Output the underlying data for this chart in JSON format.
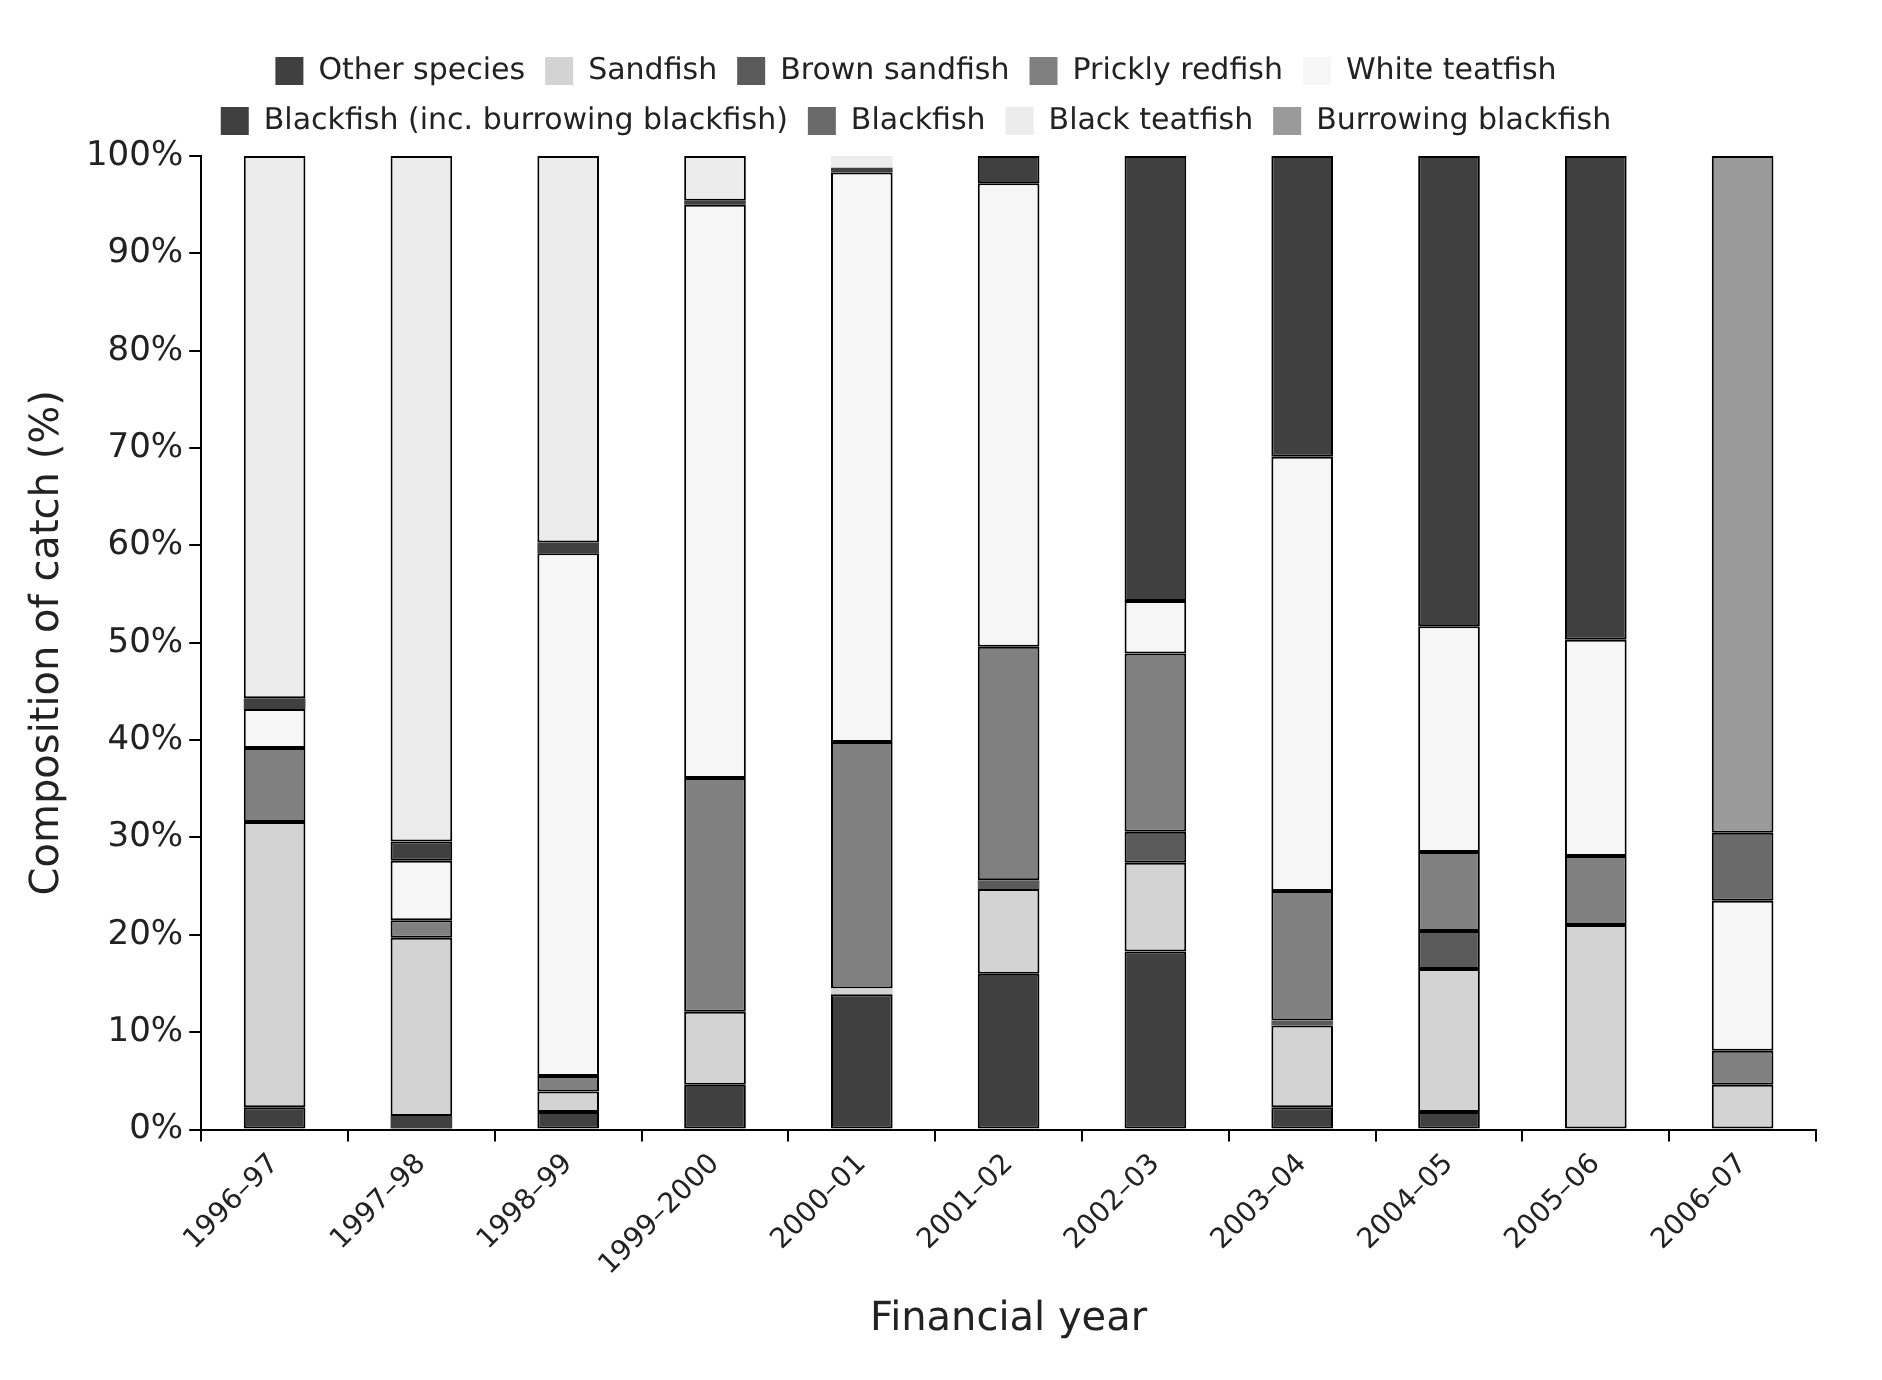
{
  "chart_data": {
    "type": "bar",
    "stacked": true,
    "xlabel": "Financial year",
    "ylabel": "Composition of catch (%)",
    "legend": "top",
    "grid": false,
    "categories": [
      "1996–97",
      "1997–98",
      "1998–99",
      "1999–2000",
      "2000–01",
      "2001–02",
      "2002–03",
      "2003–04",
      "2004–05",
      "2005–06",
      "2006–07"
    ],
    "ylim": [
      0,
      100
    ],
    "yticks": [
      {
        "value": 0,
        "label": "0%"
      },
      {
        "value": 10,
        "label": "10%"
      },
      {
        "value": 20,
        "label": "20%"
      },
      {
        "value": 30,
        "label": "30%"
      },
      {
        "value": 40,
        "label": "40%"
      },
      {
        "value": 50,
        "label": "50%"
      },
      {
        "value": 60,
        "label": "60%"
      },
      {
        "value": 70,
        "label": "70%"
      },
      {
        "value": 80,
        "label": "80%"
      },
      {
        "value": 90,
        "label": "90%"
      },
      {
        "value": 100,
        "label": "100%"
      }
    ],
    "series": [
      {
        "name": "Other species",
        "color": "#404040",
        "values": [
          2.3,
          1.4,
          1.8,
          4.6,
          13.9,
          16.0,
          18.3,
          2.3,
          1.8,
          null,
          null
        ]
      },
      {
        "name": "Sandfish",
        "color": "#d3d3d3",
        "values": [
          29.3,
          18.3,
          2.1,
          7.5,
          0.6,
          8.7,
          9.1,
          8.4,
          14.7,
          21.0,
          4.6
        ]
      },
      {
        "name": "Brown sandfish",
        "color": "#5a5a5a",
        "values": [
          null,
          null,
          null,
          null,
          null,
          0.9,
          3.2,
          0.5,
          3.9,
          null,
          null
        ]
      },
      {
        "name": "Prickly redfish",
        "color": "#808080",
        "values": [
          7.6,
          1.8,
          1.6,
          24.0,
          25.3,
          24.0,
          18.3,
          13.3,
          8.1,
          7.1,
          3.5
        ]
      },
      {
        "name": "White teatfish",
        "color": "#f6f6f6",
        "values": [
          4.0,
          6.1,
          53.7,
          58.9,
          58.5,
          47.6,
          5.4,
          44.6,
          23.2,
          22.2,
          15.4
        ]
      },
      {
        "name": "Blackfish (inc. burrowing blackfish)",
        "color": "#404040",
        "values": [
          1.1,
          2.0,
          1.1,
          0.4,
          0.5,
          2.8,
          45.7,
          30.9,
          48.3,
          49.7,
          null
        ]
      },
      {
        "name": "Blackfish",
        "color": "#6a6a6a",
        "values": [
          null,
          null,
          null,
          null,
          null,
          null,
          null,
          null,
          null,
          null,
          7.0
        ]
      },
      {
        "name": "Black teatfish",
        "color": "#ececec",
        "values": [
          55.7,
          70.4,
          39.7,
          4.6,
          1.2,
          null,
          null,
          null,
          null,
          null,
          null
        ]
      },
      {
        "name": "Burrowing blackfish",
        "color": "#9a9a9a",
        "values": [
          null,
          null,
          null,
          null,
          null,
          null,
          null,
          null,
          null,
          null,
          69.5
        ]
      }
    ]
  }
}
